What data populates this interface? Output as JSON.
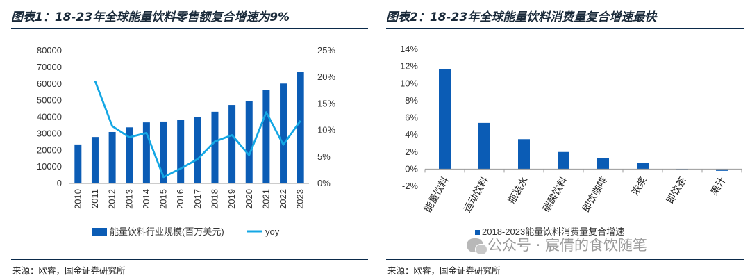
{
  "chart1": {
    "title": "图表1：18-23年全球能量饮料零售额复合增速为9%",
    "source": "来源：欧睿，国金证券研究所",
    "chart_data": {
      "type": "bar",
      "categories": [
        "2010",
        "2011",
        "2012",
        "2013",
        "2014",
        "2015",
        "2016",
        "2017",
        "2018",
        "2019",
        "2020",
        "2021",
        "2022",
        "2023"
      ],
      "series": [
        {
          "name": "能量饮料行业规模(百万美元)",
          "type": "bar",
          "axis": "left",
          "values": [
            23500,
            28000,
            31000,
            33800,
            36800,
            37300,
            38300,
            40200,
            43200,
            47300,
            49700,
            56200,
            60200,
            67300
          ]
        },
        {
          "name": "yoy",
          "type": "line",
          "axis": "right",
          "values": [
            null,
            19.3,
            10.8,
            8.7,
            9.5,
            1.2,
            2.8,
            4.6,
            7.9,
            9.1,
            5.3,
            13.4,
            7.3,
            11.8
          ]
        }
      ],
      "y_left": {
        "min": 0,
        "max": 80000,
        "ticks": [
          "0",
          "10000",
          "20000",
          "30000",
          "40000",
          "50000",
          "60000",
          "70000",
          "80000"
        ]
      },
      "y_right": {
        "min": 0,
        "max": 25,
        "ticks": [
          "0%",
          "5%",
          "10%",
          "15%",
          "20%",
          "25%"
        ]
      },
      "legend_position": "bottom",
      "colors": {
        "bar": "#0b5cb5",
        "line": "#14a7e4"
      }
    }
  },
  "chart2": {
    "title": "图表2：18-23年全球能量饮料消费量复合增速最快",
    "source": "来源：欧睿，国金证券研究所",
    "chart_data": {
      "type": "bar",
      "categories": [
        "能量饮料",
        "运动饮料",
        "瓶装水",
        "碳酸饮料",
        "即饮咖啡",
        "浓浆",
        "即饮茶",
        "果汁"
      ],
      "series": [
        {
          "name": "2018-2023能量饮料消费量复合增速",
          "values": [
            11.7,
            5.4,
            3.5,
            2.0,
            1.3,
            0.7,
            0.0,
            -0.2
          ]
        }
      ],
      "y": {
        "min": -2,
        "max": 14,
        "ticks": [
          "-2%",
          "0%",
          "2%",
          "4%",
          "6%",
          "8%",
          "10%",
          "12%",
          "14%"
        ]
      },
      "legend_position": "bottom",
      "colors": {
        "bar": "#0b5cb5"
      }
    }
  },
  "watermark": {
    "text": "公众号 · 宸倩的食饮随笔"
  }
}
